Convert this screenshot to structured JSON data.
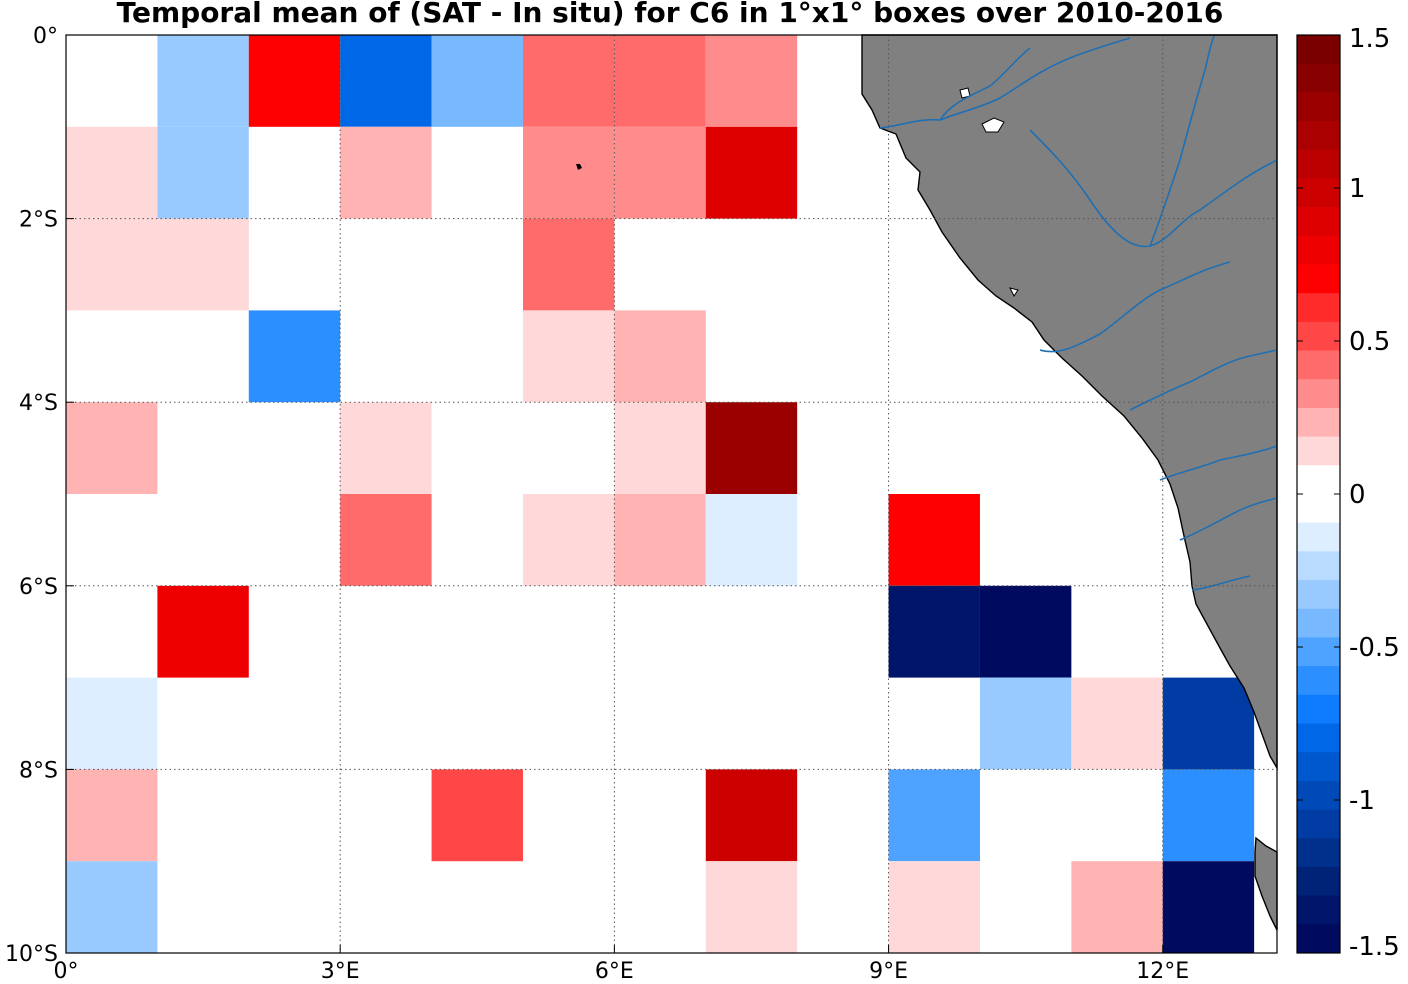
{
  "title": "Temporal mean of (SAT - In situ) for C6 in 1°x1° boxes over 2010-2016",
  "map": {
    "lon_range": [
      0,
      13.25
    ],
    "lat_range": [
      -10,
      0
    ],
    "lon_ticks": [
      {
        "value": 0,
        "label": "0°"
      },
      {
        "value": 3,
        "label": "3°E"
      },
      {
        "value": 6,
        "label": "6°E"
      },
      {
        "value": 9,
        "label": "9°E"
      },
      {
        "value": 12,
        "label": "12°E"
      }
    ],
    "lat_ticks": [
      {
        "value": 0,
        "label": "0°"
      },
      {
        "value": -2,
        "label": "2°S"
      },
      {
        "value": -4,
        "label": "4°S"
      },
      {
        "value": -6,
        "label": "6°S"
      },
      {
        "value": -8,
        "label": "8°S"
      },
      {
        "value": -10,
        "label": "10°S"
      }
    ],
    "grid": "dotted",
    "land_color": "#808080",
    "coastline_color": "#000000",
    "river_color": "#1f6fb3"
  },
  "colorbar": {
    "min": -1.5,
    "max": 1.5,
    "ticks": [
      {
        "value": 1.5,
        "label": "1.5"
      },
      {
        "value": 1,
        "label": "1"
      },
      {
        "value": 0.5,
        "label": "0.5"
      },
      {
        "value": 0,
        "label": "0"
      },
      {
        "value": -0.5,
        "label": "-0.5"
      },
      {
        "value": -1,
        "label": "-1"
      },
      {
        "value": -1.5,
        "label": "-1.5"
      }
    ],
    "colors_top_to_bottom": [
      "#7a0000",
      "#890000",
      "#9a0000",
      "#ab0000",
      "#bc0000",
      "#cd0000",
      "#de0000",
      "#ef0000",
      "#ff0000",
      "#ff2a2a",
      "#ff4747",
      "#ff6a6a",
      "#ff8c8c",
      "#ffb3b3",
      "#ffd9d9",
      "#ffffff",
      "#ffffff",
      "#dceeff",
      "#b9dbff",
      "#98caff",
      "#78b8ff",
      "#4da3ff",
      "#2b8fff",
      "#0f7cff",
      "#0068e6",
      "#0058cf",
      "#004ab8",
      "#003ca3",
      "#002f8c",
      "#002277",
      "#00156a",
      "#000a5e"
    ]
  },
  "chart_data": {
    "type": "heatmap",
    "title": "Temporal mean of (SAT - In situ) for C6 in 1°x1° boxes over 2010-2016",
    "xlabel": "",
    "ylabel": "",
    "cells": [
      {
        "lon": 1,
        "lat": 0,
        "value": -0.35
      },
      {
        "lon": 2,
        "lat": 0,
        "value": 0.7
      },
      {
        "lon": 3,
        "lat": 0,
        "value": -0.75
      },
      {
        "lon": 4,
        "lat": 0,
        "value": -0.45
      },
      {
        "lon": 5,
        "lat": 0,
        "value": 0.45
      },
      {
        "lon": 6,
        "lat": 0,
        "value": 0.45
      },
      {
        "lon": 7,
        "lat": 0,
        "value": 0.35
      },
      {
        "lon": 0,
        "lat": -1,
        "value": 0.15
      },
      {
        "lon": 1,
        "lat": -1,
        "value": -0.35
      },
      {
        "lon": 3,
        "lat": -1,
        "value": 0.25
      },
      {
        "lon": 5,
        "lat": -1,
        "value": 0.35
      },
      {
        "lon": 6,
        "lat": -1,
        "value": 0.35
      },
      {
        "lon": 7,
        "lat": -1,
        "value": 0.85
      },
      {
        "lon": 0,
        "lat": -2,
        "value": 0.15
      },
      {
        "lon": 1,
        "lat": -2,
        "value": 0.15
      },
      {
        "lon": 5,
        "lat": -2,
        "value": 0.45
      },
      {
        "lon": 2,
        "lat": -3,
        "value": -0.6
      },
      {
        "lon": 5,
        "lat": -3,
        "value": 0.15
      },
      {
        "lon": 6,
        "lat": -3,
        "value": 0.25
      },
      {
        "lon": 0,
        "lat": -4,
        "value": 0.25
      },
      {
        "lon": 3,
        "lat": -4,
        "value": 0.15
      },
      {
        "lon": 6,
        "lat": -4,
        "value": 0.15
      },
      {
        "lon": 7,
        "lat": -4,
        "value": 1.25
      },
      {
        "lon": 3,
        "lat": -5,
        "value": 0.45
      },
      {
        "lon": 5,
        "lat": -5,
        "value": 0.15
      },
      {
        "lon": 6,
        "lat": -5,
        "value": 0.25
      },
      {
        "lon": 7,
        "lat": -5,
        "value": -0.15
      },
      {
        "lon": 9,
        "lat": -5,
        "value": 0.7
      },
      {
        "lon": 1,
        "lat": -6,
        "value": 0.8
      },
      {
        "lon": 9,
        "lat": -6,
        "value": -1.35
      },
      {
        "lon": 10,
        "lat": -6,
        "value": -1.45
      },
      {
        "lon": 0,
        "lat": -7,
        "value": -0.15
      },
      {
        "lon": 10,
        "lat": -7,
        "value": -0.35
      },
      {
        "lon": 11,
        "lat": -7,
        "value": 0.15
      },
      {
        "lon": 12,
        "lat": -7,
        "value": -1.05
      },
      {
        "lon": 0,
        "lat": -8,
        "value": 0.25
      },
      {
        "lon": 4,
        "lat": -8,
        "value": 0.55
      },
      {
        "lon": 7,
        "lat": -8,
        "value": 0.95
      },
      {
        "lon": 9,
        "lat": -8,
        "value": -0.5
      },
      {
        "lon": 12,
        "lat": -8,
        "value": -0.6
      },
      {
        "lon": 0,
        "lat": -9,
        "value": -0.35
      },
      {
        "lon": 7,
        "lat": -9,
        "value": 0.15
      },
      {
        "lon": 9,
        "lat": -9,
        "value": 0.15
      },
      {
        "lon": 11,
        "lat": -9,
        "value": 0.25
      },
      {
        "lon": 12,
        "lat": -9,
        "value": -1.45
      }
    ]
  }
}
